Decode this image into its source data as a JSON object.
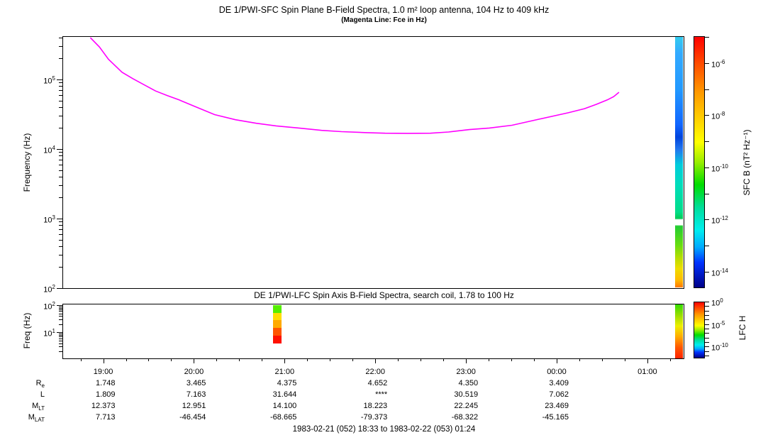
{
  "header": {
    "title": "DE 1/PWI-SFC  Spin Plane B-Field Spectra, 1.0 m² loop antenna, 104 Hz to 409 kHz",
    "subtitle": "(Magenta Line: Fce in Hz)"
  },
  "panels": {
    "sfc": {
      "ylabel": "Frequency (Hz)",
      "ytick_exponents": [
        5,
        4,
        3,
        2
      ],
      "colorbar_label": "SFC B (nT² Hz⁻¹)",
      "colorbar_labeled_exponents": [
        -6,
        -8,
        -10,
        -12,
        -14
      ],
      "colorbar_tick_exponents": [
        -5,
        -6,
        -7,
        -8,
        -9,
        -10,
        -11,
        -12,
        -13,
        -14
      ]
    },
    "lfc": {
      "title": "DE 1/PWI-LFC  Spin Axis B-Field Spectra, search coil, 1.78 to 100 Hz",
      "ylabel": "Freq (Hz)",
      "ytick_exponents": [
        2,
        1
      ],
      "colorbar_label": "LFC H",
      "colorbar_labeled_exponents": [
        0,
        -5,
        -10
      ],
      "colorbar_tick_exponents": [
        0,
        -1,
        -2,
        -3,
        -4,
        -5,
        -6,
        -7,
        -8,
        -9,
        -10,
        -11,
        -12
      ]
    }
  },
  "xaxis": {
    "hour_values": [
      19,
      20,
      21,
      22,
      23,
      24,
      25
    ],
    "hour_labels": [
      "19:00",
      "20:00",
      "21:00",
      "22:00",
      "23:00",
      "00:00",
      "01:00"
    ]
  },
  "ephemeris": {
    "row_labels": [
      {
        "main": "R",
        "sub": "e"
      },
      {
        "main": "L",
        "sub": ""
      },
      {
        "main": "M",
        "sub": "LT"
      },
      {
        "main": "M",
        "sub": "LAT"
      }
    ],
    "columns": [
      {
        "time": "19:00",
        "values": [
          "1.748",
          "1.809",
          "12.373",
          "7.713"
        ]
      },
      {
        "time": "20:00",
        "values": [
          "3.465",
          "7.163",
          "12.951",
          "-46.454"
        ]
      },
      {
        "time": "21:00",
        "values": [
          "4.375",
          "31.644",
          "14.100",
          "-68.665"
        ]
      },
      {
        "time": "22:00",
        "values": [
          "4.652",
          "****",
          "18.223",
          "-79.373"
        ]
      },
      {
        "time": "23:00",
        "values": [
          "4.350",
          "30.519",
          "22.245",
          "-68.322"
        ]
      },
      {
        "time": "00:00",
        "values": [
          "3.409",
          "7.062",
          "23.469",
          "-45.165"
        ]
      },
      {
        "time": "01:00",
        "values": [
          "",
          "",
          "",
          ""
        ]
      }
    ]
  },
  "footer": {
    "range_text": "1983-02-21 (052) 18:33 to 1983-02-22 (053) 01:24"
  },
  "colors": {
    "magenta_line": "#ff00ff",
    "rainbow_stops": [
      {
        "p": 0,
        "c": "#ff0000"
      },
      {
        "p": 7,
        "c": "#ff3300"
      },
      {
        "p": 22,
        "c": "#ff9900"
      },
      {
        "p": 32,
        "c": "#ffcc00"
      },
      {
        "p": 42,
        "c": "#ffff00"
      },
      {
        "p": 50,
        "c": "#99ee00"
      },
      {
        "p": 59,
        "c": "#00dd00"
      },
      {
        "p": 68,
        "c": "#00dd99"
      },
      {
        "p": 77,
        "c": "#00eeee"
      },
      {
        "p": 84,
        "c": "#00aaff"
      },
      {
        "p": 90,
        "c": "#0033ff"
      },
      {
        "p": 100,
        "c": "#000088"
      }
    ],
    "sfc_edge_strip_stops": [
      {
        "p": 0,
        "c": "#33ccee"
      },
      {
        "p": 6.5,
        "c": "#33aaff"
      },
      {
        "p": 21,
        "c": "#2299ff"
      },
      {
        "p": 35,
        "c": "#1166ff"
      },
      {
        "p": 40,
        "c": "#0044dd"
      },
      {
        "p": 45,
        "c": "#2277ee"
      },
      {
        "p": 51,
        "c": "#00ccdd"
      },
      {
        "p": 59,
        "c": "#00ddbb"
      },
      {
        "p": 70,
        "c": "#00dd88"
      },
      {
        "p": 72.5,
        "c": "#00cc55"
      },
      {
        "p": 73,
        "c": "#ffffff"
      },
      {
        "p": 75,
        "c": "#ffffff"
      },
      {
        "p": 75.5,
        "c": "#22cc33"
      },
      {
        "p": 83,
        "c": "#66dd11"
      },
      {
        "p": 88.5,
        "c": "#bbdd00"
      },
      {
        "p": 92.5,
        "c": "#eedd00"
      },
      {
        "p": 97,
        "c": "#ffbb00"
      },
      {
        "p": 100,
        "c": "#ff7700"
      }
    ],
    "lfc_edge_strip_stops": [
      {
        "p": 0,
        "c": "#33dd00"
      },
      {
        "p": 20,
        "c": "#99dd00"
      },
      {
        "p": 40,
        "c": "#eeee00"
      },
      {
        "p": 60,
        "c": "#ffaa00"
      },
      {
        "p": 80,
        "c": "#ff5500"
      },
      {
        "p": 100,
        "c": "#ff2200"
      }
    ],
    "lfc_patch_colors": [
      "#55ee00",
      "#ffdd00",
      "#ffaa00",
      "#ff5500",
      "#ff1100"
    ]
  },
  "chart_data": [
    {
      "type": "heatmap",
      "title": "DE 1/PWI-SFC  Spin Plane B-Field Spectra, 1.0 m² loop antenna, 104 Hz to 409 kHz",
      "subtitle": "(Magenta Line: Fce in Hz)",
      "xlabel": "UT, 1983-02-21 18:33 to 1983-02-22 01:24",
      "ylabel": "Frequency (Hz)",
      "yscale": "log",
      "ylim_hz": [
        100,
        409000
      ],
      "x_tick_labels": [
        "19:00",
        "20:00",
        "21:00",
        "22:00",
        "23:00",
        "00:00",
        "01:00"
      ],
      "x_range_hours_ut": [
        18.55,
        25.4
      ],
      "colorbar": {
        "label": "SFC B (nT² Hz⁻¹)",
        "scale": "log",
        "labeled_ticks": [
          "10⁻⁶",
          "10⁻⁸",
          "10⁻¹⁰",
          "10⁻¹²",
          "10⁻¹⁴"
        ],
        "approx_range": [
          3e-15,
          1e-05
        ]
      },
      "content_note": "panel interior blank except magenta Fce line and one spectral data column at the right edge (cyan/blue top, teal-green middle, white gap near 1 kHz, green-yellow-orange toward 100 Hz)",
      "series": [
        {
          "name": "Fce (magenta line)",
          "x_hours_ut": [
            18.85,
            18.95,
            19.05,
            19.2,
            19.32,
            19.45,
            19.57,
            19.7,
            19.83,
            20.0,
            20.22,
            20.45,
            20.68,
            20.9,
            21.15,
            21.4,
            21.62,
            21.9,
            22.1,
            22.35,
            22.6,
            22.8,
            23.03,
            23.25,
            23.5,
            23.8,
            24.12,
            24.3,
            24.43,
            24.55,
            24.62,
            24.68
          ],
          "fce_hz": [
            409000,
            300000,
            200000,
            130000,
            105000,
            85000,
            70000,
            60000,
            52000,
            42000,
            32000,
            27000,
            24000,
            22000,
            20500,
            19000,
            18200,
            17600,
            17300,
            17200,
            17300,
            18000,
            19500,
            20500,
            22500,
            27500,
            34000,
            39000,
            45000,
            52000,
            58000,
            67000
          ]
        }
      ]
    },
    {
      "type": "heatmap",
      "title": "DE 1/PWI-LFC  Spin Axis B-Field Spectra, search coil, 1.78 to 100 Hz",
      "ylabel": "Freq (Hz)",
      "yscale": "log",
      "ylim_hz": [
        1.1,
        112
      ],
      "colorbar": {
        "label": "LFC H",
        "scale": "log",
        "labeled_ticks": [
          "10⁰",
          "10⁻⁵",
          "10⁻¹⁰"
        ]
      },
      "content_note": "blank except one data patch near 20:52-20:58 UT spanning ~4-100 Hz (green at 100 Hz grading to red at 4 Hz) and a data column at the right edge (green top to red bottom)",
      "patch": {
        "t_start_hours": 20.875,
        "t_end_hours": 20.97,
        "f_top_hz": 100,
        "f_bottom_hz": 4
      }
    },
    {
      "type": "table",
      "title": "ephemeris annotations",
      "row_labels": [
        "Re",
        "L",
        "MLT",
        "MLAT"
      ],
      "columns": [
        "19:00",
        "20:00",
        "21:00",
        "22:00",
        "23:00",
        "00:00",
        "01:00"
      ],
      "rows": {
        "Re": [
          "1.748",
          "3.465",
          "4.375",
          "4.652",
          "4.350",
          "3.409",
          ""
        ],
        "L": [
          "1.809",
          "7.163",
          "31.644",
          "****",
          "30.519",
          "7.062",
          ""
        ],
        "MLT": [
          "12.373",
          "12.951",
          "14.100",
          "18.223",
          "22.245",
          "23.469",
          ""
        ],
        "MLAT": [
          "7.713",
          "-46.454",
          "-68.665",
          "-79.373",
          "-68.322",
          "-45.165",
          ""
        ]
      }
    }
  ]
}
